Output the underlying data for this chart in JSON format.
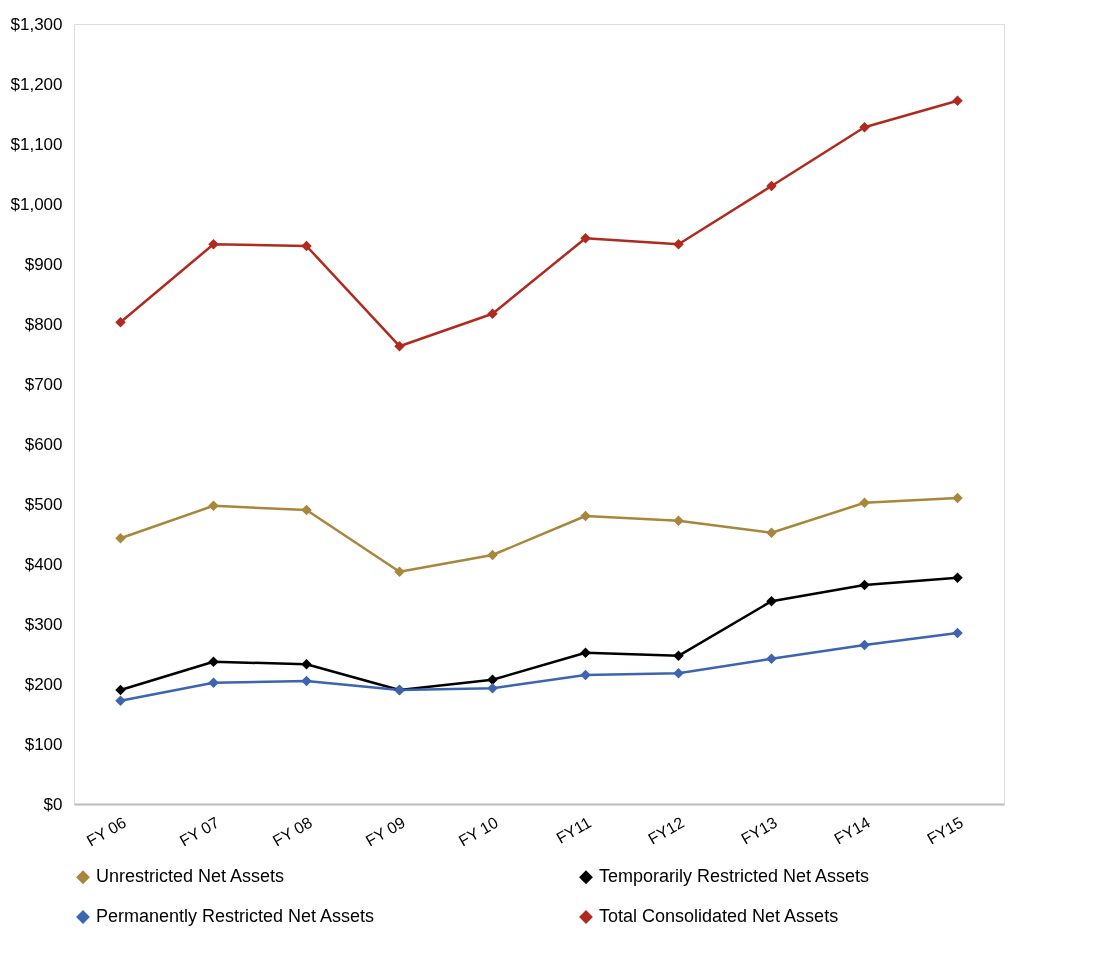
{
  "chart_data": {
    "type": "line",
    "categories": [
      "FY 06",
      "FY 07",
      "FY 08",
      "FY 09",
      "FY 10",
      "FY11",
      "FY12",
      "FY13",
      "FY14",
      "FY15"
    ],
    "series": [
      {
        "name": "Unrestricted Net Assets",
        "color": "#a8863c",
        "values": [
          443,
          497,
          490,
          387,
          415,
          480,
          472,
          452,
          502,
          510
        ]
      },
      {
        "name": "Temporarily Restricted Net Assets",
        "color": "#000000",
        "values": [
          190,
          237,
          233,
          190,
          207,
          252,
          247,
          338,
          365,
          377
        ]
      },
      {
        "name": "Permanently Restricted Net Assets",
        "color": "#3c64b0",
        "values": [
          172,
          202,
          205,
          190,
          193,
          215,
          218,
          242,
          265,
          285
        ]
      },
      {
        "name": "Total Consolidated Net Assets",
        "color": "#b02a1e",
        "values": [
          803,
          933,
          930,
          763,
          817,
          943,
          933,
          1030,
          1128,
          1172
        ]
      }
    ],
    "ylim": [
      0,
      1300
    ],
    "yticks": [
      {
        "value": 0,
        "label": "$0"
      },
      {
        "value": 100,
        "label": "$100"
      },
      {
        "value": 200,
        "label": "$200"
      },
      {
        "value": 300,
        "label": "$300"
      },
      {
        "value": 400,
        "label": "$400"
      },
      {
        "value": 500,
        "label": "$500"
      },
      {
        "value": 600,
        "label": "$600"
      },
      {
        "value": 700,
        "label": "$700"
      },
      {
        "value": 800,
        "label": "$800"
      },
      {
        "value": 900,
        "label": "$900"
      },
      {
        "value": 1000,
        "label": "$1,000"
      },
      {
        "value": 1100,
        "label": "$1,100"
      },
      {
        "value": 1200,
        "label": "$1,200"
      },
      {
        "value": 1300,
        "label": "$1,300"
      }
    ],
    "grid": false,
    "legend": "bottom",
    "marker": "diamond",
    "line_style": "solid"
  }
}
